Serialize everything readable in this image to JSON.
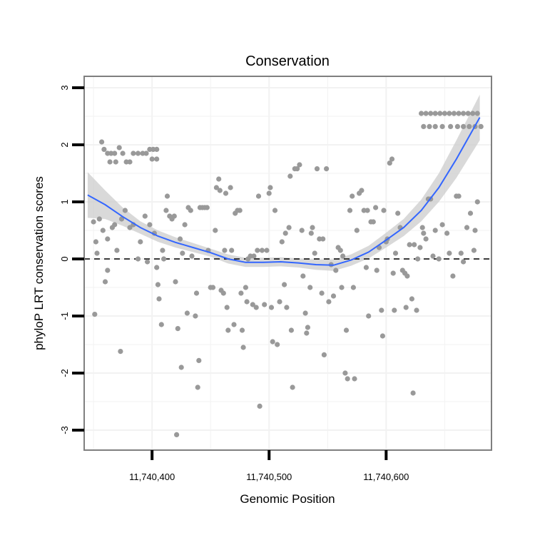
{
  "chart_data": {
    "type": "scatter",
    "title": "Conservation",
    "xlabel": "Genomic Position",
    "ylabel": "phyloP LRT conservation scores",
    "xlim": [
      11740342,
      11740690
    ],
    "ylim": [
      -3.35,
      3.2
    ],
    "x_ticks": [
      11740400,
      11740500,
      11740600
    ],
    "x_tick_labels": [
      "11,740,400",
      "11,740,500",
      "11,740,600"
    ],
    "y_ticks": [
      -3,
      -2,
      -1,
      0,
      1,
      2,
      3
    ],
    "y_tick_labels": [
      "-3",
      "-2",
      "-1",
      "0",
      "1",
      "2",
      "3"
    ],
    "grid": true,
    "reference_line": {
      "y": 0,
      "style": "dashed",
      "color": "#000000"
    },
    "colors": {
      "points": "#999999",
      "smooth_line": "#3366ff",
      "confidence_band": "#cccccc",
      "panel_border": "#7f7f7f",
      "grid": "#f2f2f2"
    },
    "points": [
      [
        11740357,
        2.05
      ],
      [
        11740359,
        1.92
      ],
      [
        11740362,
        1.85
      ],
      [
        11740365,
        1.85
      ],
      [
        11740368,
        1.85
      ],
      [
        11740364,
        1.7
      ],
      [
        11740369,
        1.7
      ],
      [
        11740372,
        1.95
      ],
      [
        11740375,
        1.85
      ],
      [
        11740378,
        1.7
      ],
      [
        11740381,
        1.7
      ],
      [
        11740384,
        1.85
      ],
      [
        11740388,
        1.85
      ],
      [
        11740392,
        1.85
      ],
      [
        11740395,
        1.85
      ],
      [
        11740398,
        1.92
      ],
      [
        11740401,
        1.92
      ],
      [
        11740404,
        1.92
      ],
      [
        11740400,
        1.75
      ],
      [
        11740404,
        1.75
      ],
      [
        11740350,
        0.65
      ],
      [
        11740352,
        0.3
      ],
      [
        11740355,
        0.7
      ],
      [
        11740353,
        0.1
      ],
      [
        11740351,
        -0.97
      ],
      [
        11740358,
        0.5
      ],
      [
        11740362,
        0.35
      ],
      [
        11740362,
        -0.2
      ],
      [
        11740360,
        -0.4
      ],
      [
        11740366,
        0.55
      ],
      [
        11740368,
        0.6
      ],
      [
        11740370,
        0.15
      ],
      [
        11740374,
        0.7
      ],
      [
        11740373,
        -1.62
      ],
      [
        11740377,
        0.85
      ],
      [
        11740381,
        0.55
      ],
      [
        11740384,
        0.6
      ],
      [
        11740388,
        0.0
      ],
      [
        11740390,
        0.3
      ],
      [
        11740394,
        0.75
      ],
      [
        11740396,
        -0.05
      ],
      [
        11740398,
        0.6
      ],
      [
        11740402,
        0.45
      ],
      [
        11740404,
        -0.15
      ],
      [
        11740405,
        -0.45
      ],
      [
        11740406,
        -0.7
      ],
      [
        11740408,
        -1.15
      ],
      [
        11740409,
        0.15
      ],
      [
        11740410,
        0.0
      ],
      [
        11740412,
        0.85
      ],
      [
        11740413,
        1.1
      ],
      [
        11740415,
        0.75
      ],
      [
        11740417,
        0.7
      ],
      [
        11740419,
        0.75
      ],
      [
        11740420,
        -0.4
      ],
      [
        11740422,
        -1.22
      ],
      [
        11740424,
        0.35
      ],
      [
        11740425,
        -1.9
      ],
      [
        11740421,
        -3.08
      ],
      [
        11740426,
        0.1
      ],
      [
        11740428,
        0.6
      ],
      [
        11740430,
        -0.95
      ],
      [
        11740431,
        0.9
      ],
      [
        11740433,
        0.85
      ],
      [
        11740434,
        0.05
      ],
      [
        11740437,
        -1.0
      ],
      [
        11740438,
        -0.6
      ],
      [
        11740439,
        -2.25
      ],
      [
        11740440,
        -1.78
      ],
      [
        11740441,
        0.9
      ],
      [
        11740443,
        0.9
      ],
      [
        11740445,
        0.9
      ],
      [
        11740447,
        0.9
      ],
      [
        11740448,
        0.15
      ],
      [
        11740450,
        -0.5
      ],
      [
        11740452,
        -0.5
      ],
      [
        11740454,
        0.5
      ],
      [
        11740455,
        1.25
      ],
      [
        11740457,
        1.4
      ],
      [
        11740458,
        1.2
      ],
      [
        11740459,
        -0.55
      ],
      [
        11740461,
        -0.6
      ],
      [
        11740462,
        0.15
      ],
      [
        11740463,
        1.15
      ],
      [
        11740464,
        -0.85
      ],
      [
        11740465,
        -1.25
      ],
      [
        11740467,
        1.25
      ],
      [
        11740468,
        0.15
      ],
      [
        11740470,
        -1.15
      ],
      [
        11740471,
        0.8
      ],
      [
        11740473,
        0.85
      ],
      [
        11740475,
        0.85
      ],
      [
        11740476,
        -0.6
      ],
      [
        11740477,
        -1.25
      ],
      [
        11740478,
        -1.55
      ],
      [
        11740480,
        -0.5
      ],
      [
        11740481,
        -0.75
      ],
      [
        11740482,
        0.0
      ],
      [
        11740484,
        0.05
      ],
      [
        11740486,
        -0.8
      ],
      [
        11740487,
        0.05
      ],
      [
        11740489,
        -0.85
      ],
      [
        11740490,
        0.15
      ],
      [
        11740491,
        1.1
      ],
      [
        11740492,
        -2.58
      ],
      [
        11740494,
        0.15
      ],
      [
        11740496,
        -0.8
      ],
      [
        11740498,
        0.15
      ],
      [
        11740500,
        1.15
      ],
      [
        11740501,
        1.25
      ],
      [
        11740502,
        -0.85
      ],
      [
        11740503,
        -1.45
      ],
      [
        11740505,
        0.85
      ],
      [
        11740507,
        -1.5
      ],
      [
        11740509,
        -0.75
      ],
      [
        11740511,
        0.3
      ],
      [
        11740513,
        -0.45
      ],
      [
        11740514,
        0.45
      ],
      [
        11740515,
        -0.85
      ],
      [
        11740517,
        0.55
      ],
      [
        11740518,
        1.45
      ],
      [
        11740519,
        -1.25
      ],
      [
        11740520,
        -2.25
      ],
      [
        11740522,
        1.58
      ],
      [
        11740524,
        1.58
      ],
      [
        11740526,
        1.65
      ],
      [
        11740528,
        0.5
      ],
      [
        11740529,
        -0.3
      ],
      [
        11740531,
        -0.95
      ],
      [
        11740532,
        -1.3
      ],
      [
        11740533,
        -1.2
      ],
      [
        11740535,
        -0.5
      ],
      [
        11740536,
        0.45
      ],
      [
        11740537,
        0.55
      ],
      [
        11740539,
        0.1
      ],
      [
        11740541,
        1.58
      ],
      [
        11740543,
        0.35
      ],
      [
        11740545,
        -0.6
      ],
      [
        11740546,
        0.35
      ],
      [
        11740547,
        -1.68
      ],
      [
        11740549,
        1.58
      ],
      [
        11740551,
        -0.75
      ],
      [
        11740553,
        -0.1
      ],
      [
        11740555,
        -0.65
      ],
      [
        11740557,
        -0.2
      ],
      [
        11740559,
        0.2
      ],
      [
        11740561,
        0.15
      ],
      [
        11740562,
        -0.5
      ],
      [
        11740563,
        0.05
      ],
      [
        11740565,
        -2.0
      ],
      [
        11740566,
        -1.25
      ],
      [
        11740567,
        -2.1
      ],
      [
        11740569,
        0.85
      ],
      [
        11740571,
        1.1
      ],
      [
        11740572,
        -0.5
      ],
      [
        11740573,
        -2.1
      ],
      [
        11740575,
        0.5
      ],
      [
        11740577,
        1.15
      ],
      [
        11740579,
        1.2
      ],
      [
        11740581,
        0.85
      ],
      [
        11740583,
        -0.15
      ],
      [
        11740584,
        0.85
      ],
      [
        11740585,
        -1.0
      ],
      [
        11740587,
        0.65
      ],
      [
        11740589,
        0.65
      ],
      [
        11740591,
        0.9
      ],
      [
        11740592,
        -0.2
      ],
      [
        11740594,
        0.2
      ],
      [
        11740596,
        -0.9
      ],
      [
        11740597,
        -1.35
      ],
      [
        11740598,
        0.85
      ],
      [
        11740600,
        0.3
      ],
      [
        11740601,
        0.35
      ],
      [
        11740603,
        1.68
      ],
      [
        11740605,
        1.75
      ],
      [
        11740606,
        -0.25
      ],
      [
        11740607,
        -0.9
      ],
      [
        11740608,
        0.1
      ],
      [
        11740610,
        0.8
      ],
      [
        11740612,
        0.55
      ],
      [
        11740614,
        -0.2
      ],
      [
        11740616,
        -0.25
      ],
      [
        11740617,
        -0.85
      ],
      [
        11740618,
        -0.3
      ],
      [
        11740620,
        0.25
      ],
      [
        11740622,
        -0.7
      ],
      [
        11740623,
        -2.35
      ],
      [
        11740624,
        0.25
      ],
      [
        11740626,
        -0.9
      ],
      [
        11740627,
        0.0
      ],
      [
        11740629,
        0.2
      ],
      [
        11740631,
        0.55
      ],
      [
        11740632,
        0.45
      ],
      [
        11740634,
        0.35
      ],
      [
        11740636,
        1.05
      ],
      [
        11740638,
        1.05
      ],
      [
        11740640,
        0.05
      ],
      [
        11740642,
        0.5
      ],
      [
        11740645,
        0.0
      ],
      [
        11740648,
        0.6
      ],
      [
        11740652,
        0.45
      ],
      [
        11740654,
        0.1
      ],
      [
        11740657,
        -0.3
      ],
      [
        11740660,
        1.1
      ],
      [
        11740662,
        1.1
      ],
      [
        11740664,
        0.1
      ],
      [
        11740666,
        -0.05
      ],
      [
        11740669,
        0.55
      ],
      [
        11740672,
        0.8
      ],
      [
        11740675,
        0.15
      ],
      [
        11740676,
        0.5
      ],
      [
        11740678,
        1.0
      ],
      [
        11740630,
        2.55
      ],
      [
        11740634,
        2.55
      ],
      [
        11740638,
        2.55
      ],
      [
        11740642,
        2.55
      ],
      [
        11740646,
        2.55
      ],
      [
        11740650,
        2.55
      ],
      [
        11740654,
        2.55
      ],
      [
        11740658,
        2.55
      ],
      [
        11740662,
        2.55
      ],
      [
        11740666,
        2.55
      ],
      [
        11740670,
        2.55
      ],
      [
        11740674,
        2.55
      ],
      [
        11740678,
        2.55
      ],
      [
        11740632,
        2.32
      ],
      [
        11740637,
        2.32
      ],
      [
        11740642,
        2.32
      ],
      [
        11740648,
        2.32
      ],
      [
        11740655,
        2.32
      ],
      [
        11740661,
        2.32
      ],
      [
        11740666,
        2.32
      ],
      [
        11740671,
        2.32
      ],
      [
        11740676,
        2.32
      ],
      [
        11740681,
        2.32
      ]
    ],
    "smooth": {
      "x": [
        11740345,
        11740360,
        11740375,
        11740390,
        11740405,
        11740420,
        11740435,
        11740450,
        11740465,
        11740480,
        11740495,
        11740510,
        11740525,
        11740540,
        11740555,
        11740570,
        11740585,
        11740600,
        11740615,
        11740630,
        11740645,
        11740660,
        11740680
      ],
      "y": [
        1.12,
        0.95,
        0.74,
        0.55,
        0.4,
        0.29,
        0.2,
        0.11,
        0.0,
        -0.06,
        -0.06,
        -0.05,
        -0.07,
        -0.1,
        -0.11,
        -0.02,
        0.12,
        0.33,
        0.55,
        0.85,
        1.25,
        1.75,
        2.48
      ],
      "upper": [
        1.52,
        1.2,
        0.9,
        0.66,
        0.5,
        0.38,
        0.28,
        0.18,
        0.08,
        0.02,
        0.02,
        0.03,
        0.01,
        -0.01,
        -0.01,
        0.08,
        0.23,
        0.46,
        0.7,
        1.04,
        1.5,
        2.08,
        2.88
      ],
      "lower": [
        0.72,
        0.7,
        0.58,
        0.44,
        0.3,
        0.2,
        0.12,
        0.04,
        -0.08,
        -0.14,
        -0.14,
        -0.13,
        -0.15,
        -0.19,
        -0.21,
        -0.12,
        0.01,
        0.2,
        0.4,
        0.66,
        1.0,
        1.42,
        2.08
      ]
    }
  }
}
